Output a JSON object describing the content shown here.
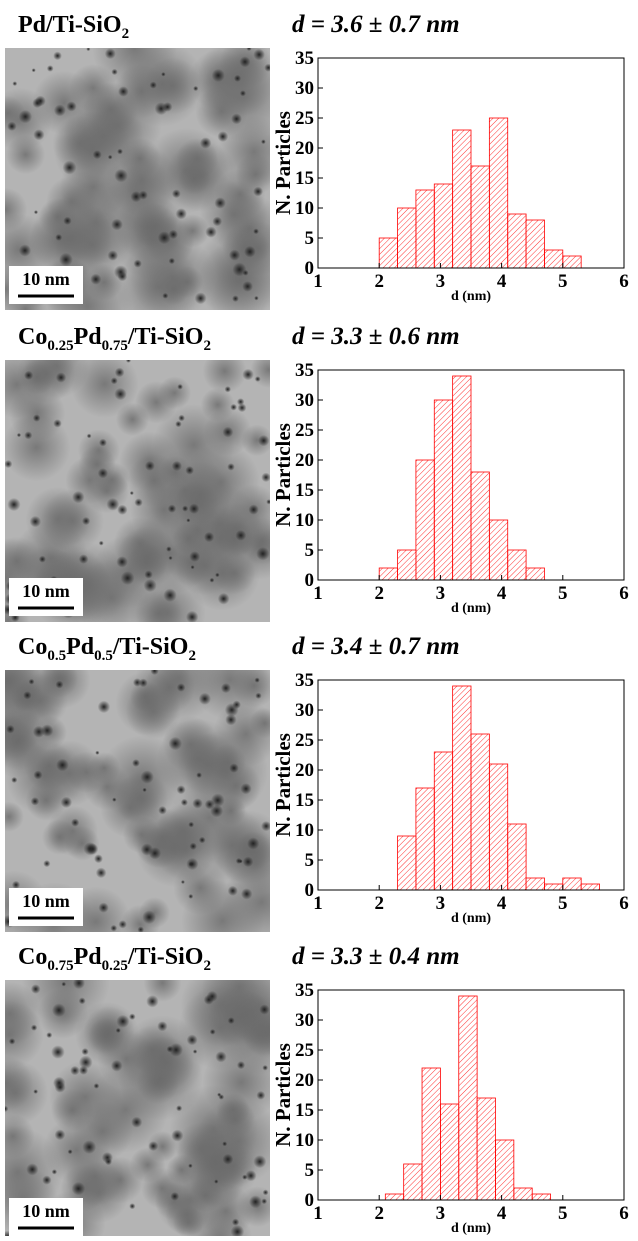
{
  "chart_data": [
    {
      "type": "histogram",
      "title_parts": [
        "Pd/Ti-SiO",
        "2"
      ],
      "subtitle": "d = 3.6 ± 0.7 nm",
      "scale_bar": "10 nm",
      "xlabel": "d (nm)",
      "ylabel": "N. Particles",
      "color": "red",
      "bins": [
        2.0,
        2.3,
        2.6,
        2.9,
        3.2,
        3.5,
        3.8,
        4.1,
        4.4,
        4.7,
        5.0,
        5.3
      ],
      "values": [
        5,
        10,
        13,
        14,
        23,
        17,
        25,
        9,
        8,
        3,
        2
      ],
      "xlim": [
        1,
        6
      ],
      "ylim": [
        0,
        35
      ],
      "xticks": [
        1,
        2,
        3,
        4,
        5,
        6
      ],
      "yticks": [
        0,
        5,
        10,
        15,
        20,
        25,
        30,
        35
      ]
    },
    {
      "type": "histogram",
      "title_parts": [
        "Co",
        "0.25",
        "Pd",
        "0.75",
        "/Ti-SiO",
        "2"
      ],
      "subtitle": "d = 3.3 ± 0.6 nm",
      "scale_bar": "10 nm",
      "xlabel": "d (nm)",
      "ylabel": "N. Particles",
      "color": "red",
      "bins": [
        2.0,
        2.3,
        2.6,
        2.9,
        3.2,
        3.5,
        3.8,
        4.1,
        4.4,
        4.7
      ],
      "values": [
        2,
        5,
        20,
        30,
        34,
        18,
        10,
        5,
        2
      ],
      "xlim": [
        1,
        6
      ],
      "ylim": [
        0,
        35
      ],
      "xticks": [
        1,
        2,
        3,
        4,
        5,
        6
      ],
      "yticks": [
        0,
        5,
        10,
        15,
        20,
        25,
        30,
        35
      ]
    },
    {
      "type": "histogram",
      "title_parts": [
        "Co",
        "0.5",
        "Pd",
        "0.5",
        "/Ti-SiO",
        "2"
      ],
      "subtitle": "d = 3.4 ± 0.7 nm",
      "scale_bar": "10 nm",
      "xlabel": "d (nm)",
      "ylabel": "N. Particles",
      "color": "red",
      "bins": [
        2.3,
        2.6,
        2.9,
        3.2,
        3.5,
        3.8,
        4.1,
        4.4,
        4.7,
        5.0,
        5.3,
        5.6
      ],
      "values": [
        9,
        17,
        23,
        34,
        26,
        21,
        11,
        2,
        1,
        2,
        1
      ],
      "xlim": [
        1,
        6
      ],
      "ylim": [
        0,
        35
      ],
      "xticks": [
        1,
        2,
        3,
        4,
        5,
        6
      ],
      "yticks": [
        0,
        5,
        10,
        15,
        20,
        25,
        30,
        35
      ]
    },
    {
      "type": "histogram",
      "title_parts": [
        "Co",
        "0.75",
        "Pd",
        "0.25",
        "/Ti-SiO",
        "2"
      ],
      "subtitle": "d = 3.3 ± 0.4 nm",
      "scale_bar": "10 nm",
      "xlabel": "d (nm)",
      "ylabel": "N. Particles",
      "color": "red",
      "bins": [
        2.1,
        2.4,
        2.7,
        3.0,
        3.3,
        3.6,
        3.9,
        4.2,
        4.5,
        4.8
      ],
      "values": [
        1,
        6,
        22,
        16,
        34,
        17,
        10,
        2,
        1
      ],
      "xlim": [
        1,
        6
      ],
      "ylim": [
        0,
        35
      ],
      "xticks": [
        1,
        2,
        3,
        4,
        5,
        6
      ],
      "yticks": [
        0,
        5,
        10,
        15,
        20,
        25,
        30,
        35
      ]
    }
  ]
}
